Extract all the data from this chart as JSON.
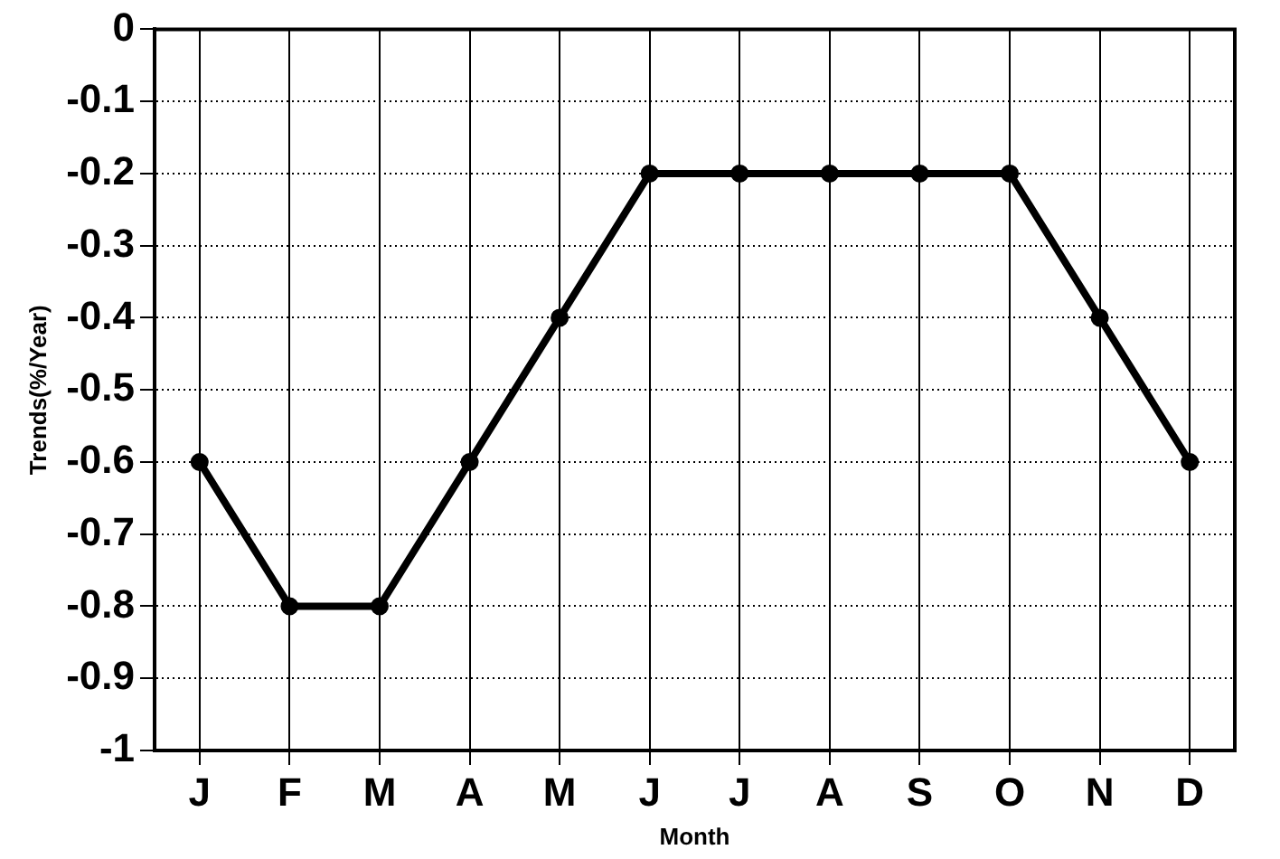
{
  "chart_data": {
    "type": "line",
    "xlabel": "Month",
    "ylabel": "Trends(%/Year)",
    "categories": [
      "J",
      "F",
      "M",
      "A",
      "M",
      "J",
      "J",
      "A",
      "S",
      "O",
      "N",
      "D"
    ],
    "series": [
      {
        "color": "#000000",
        "values": [
          -0.6,
          -0.8,
          -0.8,
          -0.6,
          -0.4,
          -0.2,
          -0.2,
          -0.2,
          -0.2,
          -0.2,
          -0.4,
          -0.6
        ]
      }
    ],
    "ylim": [
      -1,
      0
    ],
    "yticks": [
      -1,
      -0.9,
      -0.8,
      -0.7,
      -0.6,
      -0.5,
      -0.4,
      -0.3,
      -0.2,
      -0.1,
      0
    ],
    "grid": true,
    "legend": false,
    "marker": "circle",
    "line_style": "solid"
  }
}
